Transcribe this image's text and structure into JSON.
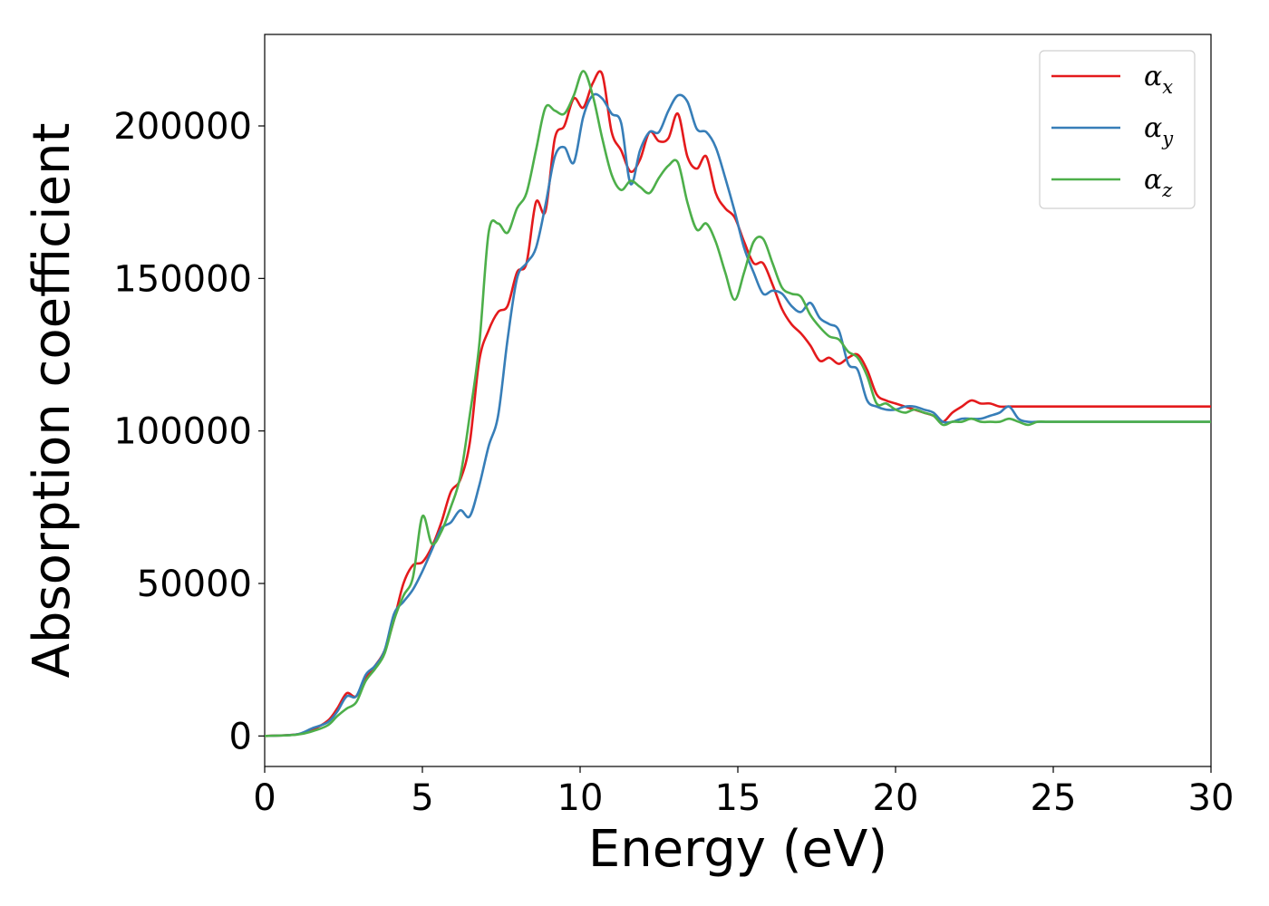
{
  "chart_data": {
    "type": "line",
    "title": "",
    "xlabel": "Energy (eV)",
    "ylabel": "Absorption coefficient",
    "xlim": [
      0,
      30
    ],
    "ylim": [
      -10000,
      230000
    ],
    "xticks": [
      0,
      5,
      10,
      15,
      20,
      25,
      30
    ],
    "yticks": [
      0,
      50000,
      100000,
      150000,
      200000
    ],
    "xtick_labels": [
      "0",
      "5",
      "10",
      "15",
      "20",
      "25",
      "30"
    ],
    "ytick_labels": [
      "0",
      "50000",
      "100000",
      "150000",
      "200000"
    ],
    "grid": false,
    "legend_position": "top-right",
    "series": [
      {
        "name": "α_x",
        "label_base": "α",
        "label_sub": "x",
        "color": "#e41a1c",
        "x": [
          0,
          1,
          1.5,
          2,
          2.3,
          2.6,
          2.9,
          3.2,
          3.5,
          3.8,
          4.1,
          4.4,
          4.7,
          5,
          5.3,
          5.6,
          5.9,
          6.2,
          6.5,
          6.8,
          7.1,
          7.4,
          7.7,
          8,
          8.3,
          8.6,
          8.9,
          9.2,
          9.5,
          9.8,
          10.1,
          10.4,
          10.7,
          11,
          11.3,
          11.6,
          11.9,
          12.2,
          12.5,
          12.8,
          13.1,
          13.4,
          13.7,
          14,
          14.3,
          14.6,
          14.9,
          15.2,
          15.5,
          15.8,
          16.1,
          16.4,
          16.7,
          17,
          17.3,
          17.6,
          17.9,
          18.2,
          18.5,
          18.8,
          19.1,
          19.4,
          19.7,
          20,
          20.3,
          20.6,
          20.9,
          21.2,
          21.5,
          21.8,
          22.1,
          22.4,
          22.7,
          23,
          23.3,
          23.6,
          23.9,
          24.2,
          24.5,
          24.8,
          25.1,
          25.4,
          25.7,
          26,
          26.3,
          26.6,
          26.9,
          27.2,
          27.5,
          27.8,
          28.1,
          28.4,
          28.7,
          29,
          29.3,
          29.6,
          30
        ],
        "y": [
          0,
          500,
          2000,
          5000,
          9000,
          14000,
          13000,
          19000,
          23000,
          28000,
          38000,
          50000,
          56000,
          57000,
          62000,
          70000,
          80000,
          84000,
          96000,
          123000,
          133000,
          139000,
          141000,
          152000,
          155000,
          175000,
          172000,
          196000,
          200000,
          209000,
          206000,
          214000,
          217000,
          198000,
          192000,
          185000,
          189000,
          198000,
          195000,
          196000,
          204000,
          190000,
          186000,
          190000,
          178000,
          173000,
          170000,
          162000,
          155000,
          155000,
          148000,
          140000,
          135000,
          132000,
          128000,
          123000,
          124000,
          122000,
          124000,
          125000,
          120000,
          112000,
          110000,
          109000,
          108000,
          107000,
          106000,
          105000,
          103000,
          106000,
          108000,
          110000,
          109000,
          109000,
          108000,
          108000,
          108000,
          108000,
          108000,
          108000,
          108000,
          108000,
          108000,
          108000,
          108000,
          108000,
          108000,
          108000,
          108000,
          108000,
          108000,
          108000,
          108000,
          108000,
          108000,
          108000,
          108000
        ]
      },
      {
        "name": "α_y",
        "label_base": "α",
        "label_sub": "y",
        "color": "#377eb8",
        "x": [
          0,
          1,
          1.5,
          2,
          2.3,
          2.6,
          2.9,
          3.2,
          3.5,
          3.8,
          4.1,
          4.4,
          4.7,
          5,
          5.3,
          5.6,
          5.9,
          6.2,
          6.5,
          6.8,
          7.1,
          7.4,
          7.7,
          8,
          8.3,
          8.6,
          8.9,
          9.2,
          9.5,
          9.8,
          10.1,
          10.4,
          10.7,
          11,
          11.3,
          11.6,
          11.9,
          12.2,
          12.5,
          12.8,
          13.1,
          13.4,
          13.7,
          14,
          14.3,
          14.6,
          14.9,
          15.2,
          15.5,
          15.8,
          16.1,
          16.4,
          16.7,
          17,
          17.3,
          17.6,
          17.9,
          18.2,
          18.5,
          18.8,
          19.1,
          19.4,
          19.7,
          20,
          20.3,
          20.6,
          20.9,
          21.2,
          21.5,
          21.8,
          22.1,
          22.4,
          22.7,
          23,
          23.3,
          23.6,
          23.9,
          24.2,
          24.5,
          24.8,
          25.1,
          25.4,
          25.7,
          26,
          26.3,
          26.6,
          26.9,
          27.2,
          27.5,
          27.8,
          28.1,
          28.4,
          28.7,
          29,
          29.3,
          29.6,
          30
        ],
        "y": [
          0,
          500,
          2500,
          4500,
          8000,
          13000,
          13000,
          20000,
          23000,
          28000,
          40000,
          44000,
          48000,
          54000,
          61000,
          68000,
          70000,
          74000,
          72000,
          82000,
          95000,
          105000,
          130000,
          150000,
          155000,
          160000,
          174000,
          190000,
          193000,
          188000,
          203000,
          210000,
          209000,
          204000,
          201000,
          181000,
          192000,
          198000,
          198000,
          205000,
          210000,
          208000,
          199000,
          198000,
          193000,
          183000,
          172000,
          160000,
          152000,
          145000,
          146000,
          145000,
          141000,
          139000,
          142000,
          137000,
          135000,
          133000,
          122000,
          120000,
          110000,
          108000,
          107000,
          107000,
          108000,
          108000,
          107000,
          106000,
          103000,
          103000,
          104000,
          104000,
          104000,
          105000,
          106000,
          108000,
          104000,
          103000,
          103000,
          103000,
          103000,
          103000,
          103000,
          103000,
          103000,
          103000,
          103000,
          103000,
          103000,
          103000,
          103000,
          103000,
          103000,
          103000,
          103000,
          103000,
          103000
        ]
      },
      {
        "name": "α_z",
        "label_base": "α",
        "label_sub": "z",
        "color": "#4daf4a",
        "x": [
          0,
          1,
          1.5,
          2,
          2.3,
          2.6,
          2.9,
          3.2,
          3.5,
          3.8,
          4.1,
          4.4,
          4.7,
          5,
          5.3,
          5.6,
          5.9,
          6.2,
          6.5,
          6.8,
          7.1,
          7.4,
          7.7,
          8,
          8.3,
          8.6,
          8.9,
          9.2,
          9.5,
          9.8,
          10.1,
          10.4,
          10.7,
          11,
          11.3,
          11.6,
          11.9,
          12.2,
          12.5,
          12.8,
          13.1,
          13.4,
          13.7,
          14,
          14.3,
          14.6,
          14.9,
          15.2,
          15.5,
          15.8,
          16.1,
          16.4,
          16.7,
          17,
          17.3,
          17.6,
          17.9,
          18.2,
          18.5,
          18.8,
          19.1,
          19.4,
          19.7,
          20,
          20.3,
          20.6,
          20.9,
          21.2,
          21.5,
          21.8,
          22.1,
          22.4,
          22.7,
          23,
          23.3,
          23.6,
          23.9,
          24.2,
          24.5,
          24.8,
          25.1,
          25.4,
          25.7,
          26,
          26.3,
          26.6,
          26.9,
          27.2,
          27.5,
          27.8,
          28.1,
          28.4,
          28.7,
          29,
          29.3,
          29.6,
          30
        ],
        "y": [
          0,
          400,
          1500,
          3500,
          6500,
          9000,
          11000,
          18000,
          22000,
          27000,
          38000,
          46000,
          52000,
          72000,
          63000,
          67000,
          75000,
          85000,
          105000,
          128000,
          165000,
          168000,
          165000,
          173000,
          178000,
          192000,
          206000,
          205000,
          204000,
          210000,
          218000,
          210000,
          196000,
          184000,
          179000,
          182000,
          180000,
          178000,
          183000,
          187000,
          188000,
          175000,
          166000,
          168000,
          162000,
          152000,
          143000,
          152000,
          162000,
          163000,
          155000,
          147000,
          145000,
          144000,
          138000,
          134000,
          131000,
          130000,
          126000,
          124000,
          118000,
          109000,
          109000,
          107000,
          106000,
          107000,
          106000,
          105000,
          102000,
          103000,
          103000,
          104000,
          103000,
          103000,
          103000,
          104000,
          103000,
          102000,
          103000,
          103000,
          103000,
          103000,
          103000,
          103000,
          103000,
          103000,
          103000,
          103000,
          103000,
          103000,
          103000,
          103000,
          103000,
          103000,
          103000,
          103000,
          103000
        ]
      }
    ]
  }
}
